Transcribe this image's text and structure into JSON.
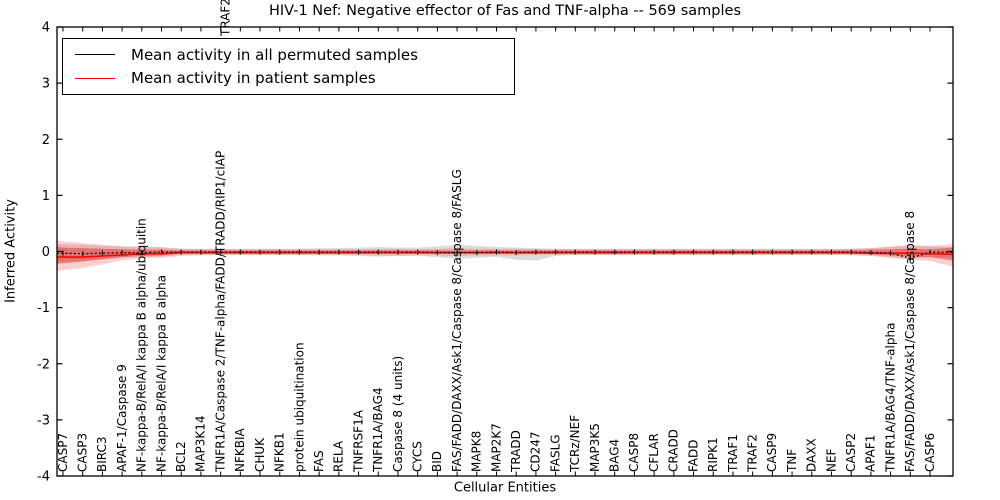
{
  "title": "HIV-1 Nef: Negative effector of Fas and TNF-alpha -- 569 samples",
  "axes": {
    "ylabel": "Inferred Activity",
    "xlabel": "Cellular Entities",
    "yticks": [
      "4",
      "3",
      "2",
      "1",
      "0",
      "-1",
      "-2",
      "-3",
      "-4"
    ]
  },
  "legend": [
    {
      "label": "Mean activity in all permuted samples",
      "color": "#000000"
    },
    {
      "label": "Mean activity in patient samples",
      "color": "#ff0000"
    }
  ],
  "annotation": {
    "text": "TRAF2"
  },
  "chart_data": {
    "type": "line",
    "title": "HIV-1 Nef: Negative effector of Fas and TNF-alpha -- 569 samples",
    "xlabel": "Cellular Entities",
    "ylabel": "Inferred Activity",
    "ylim": [
      -4,
      4
    ],
    "grid": false,
    "legend_position": "upper left",
    "categories": [
      "CASP7",
      "CASP3",
      "BIRC3",
      "APAF-1/Caspase 9",
      "NF-kappa-B/RelA/I kappa B alpha/ubiquitin",
      "NF-kappa-B/RelA/I kappa B alpha",
      "BCL2",
      "MAP3K14",
      "TNFR1A/Caspase 2/TNF-alpha/FADD/TRADD/RIP1/cIAP",
      "NFKBIA",
      "CHUK",
      "NFKB1",
      "protein ubiquitination",
      "FAS",
      "RELA",
      "TNFRSF1A",
      "TNFR1A/BAG4",
      "Caspase 8 (4 units)",
      "CYCS",
      "BID",
      "FAS/FADD/DAXX/Ask1/Caspase 8/Caspase 8/FASLG",
      "MAPK8",
      "MAP2K7",
      "TRADD",
      "CD247",
      "FASLG",
      "TCRz/NEF",
      "MAP3K5",
      "BAG4",
      "CASP8",
      "CFLAR",
      "CRADD",
      "FADD",
      "RIPK1",
      "TRAF1",
      "TRAF2",
      "CASP9",
      "TNF",
      "DAXX",
      "NEF",
      "CASP2",
      "APAF1",
      "TNFR1A/BAG4/TNF-alpha",
      "FAS/FADD/DAXX/Ask1/Caspase 8/Caspase 8",
      "CASP6"
    ],
    "series": [
      {
        "name": "Mean activity in all permuted samples",
        "color": "#000000",
        "values": [
          -0.03,
          -0.04,
          -0.03,
          -0.02,
          -0.02,
          -0.01,
          -0.01,
          -0.01,
          -0.01,
          -0.01,
          -0.01,
          -0.01,
          -0.01,
          -0.01,
          -0.01,
          -0.01,
          -0.01,
          -0.01,
          -0.01,
          -0.02,
          -0.02,
          -0.02,
          -0.01,
          -0.02,
          -0.01,
          -0.01,
          -0.01,
          -0.01,
          -0.01,
          -0.01,
          -0.01,
          -0.01,
          -0.01,
          -0.01,
          -0.01,
          -0.01,
          -0.01,
          -0.01,
          -0.01,
          -0.01,
          -0.01,
          -0.02,
          -0.03,
          -0.12,
          -0.01
        ]
      },
      {
        "name": "Mean activity in patient samples",
        "color": "#ff0000",
        "values": [
          -0.1,
          -0.1,
          -0.08,
          -0.06,
          -0.04,
          -0.04,
          -0.02,
          -0.02,
          -0.02,
          -0.02,
          -0.02,
          -0.02,
          -0.02,
          -0.02,
          -0.02,
          -0.02,
          -0.02,
          -0.02,
          -0.02,
          -0.02,
          -0.02,
          -0.02,
          -0.02,
          -0.02,
          -0.02,
          -0.02,
          -0.02,
          -0.02,
          -0.02,
          -0.02,
          -0.02,
          -0.02,
          -0.02,
          -0.02,
          -0.02,
          -0.02,
          -0.02,
          -0.02,
          -0.02,
          -0.02,
          -0.02,
          -0.03,
          -0.03,
          -0.03,
          -0.04
        ]
      }
    ],
    "bands": [
      {
        "name": "permuted-samples-std",
        "color": "rgba(128,128,128,0.28)",
        "upper": [
          0.13,
          0.12,
          0.1,
          0.09,
          0.08,
          0.08,
          0.05,
          0.05,
          0.05,
          0.05,
          0.05,
          0.05,
          0.05,
          0.06,
          0.06,
          0.07,
          0.08,
          0.07,
          0.07,
          0.09,
          0.12,
          0.1,
          0.08,
          0.07,
          0.06,
          0.05,
          0.05,
          0.05,
          0.05,
          0.05,
          0.05,
          0.05,
          0.05,
          0.05,
          0.05,
          0.05,
          0.05,
          0.05,
          0.05,
          0.05,
          0.05,
          0.06,
          0.08,
          0.11,
          0.09
        ],
        "lower": [
          -0.18,
          -0.16,
          -0.13,
          -0.11,
          -0.1,
          -0.09,
          -0.06,
          -0.06,
          -0.06,
          -0.06,
          -0.06,
          -0.06,
          -0.06,
          -0.07,
          -0.07,
          -0.08,
          -0.09,
          -0.08,
          -0.08,
          -0.1,
          -0.13,
          -0.11,
          -0.09,
          -0.15,
          -0.16,
          -0.08,
          -0.06,
          -0.06,
          -0.06,
          -0.06,
          -0.06,
          -0.06,
          -0.06,
          -0.06,
          -0.06,
          -0.06,
          -0.06,
          -0.06,
          -0.06,
          -0.06,
          -0.06,
          -0.07,
          -0.1,
          -0.13,
          -0.11
        ],
        "edge_left": [
          0.13,
          -0.18
        ],
        "edge_right": [
          0.08,
          -0.1
        ]
      },
      {
        "name": "patient-samples-std-outer",
        "color": "rgba(255,60,60,0.25)",
        "upper": [
          0.18,
          0.15,
          0.12,
          0.09,
          0.08,
          0.07,
          0.05,
          0.04,
          0.04,
          0.04,
          0.04,
          0.04,
          0.04,
          0.04,
          0.04,
          0.04,
          0.05,
          0.05,
          0.04,
          0.05,
          0.06,
          0.05,
          0.05,
          0.05,
          0.04,
          0.04,
          0.04,
          0.04,
          0.04,
          0.04,
          0.04,
          0.04,
          0.04,
          0.04,
          0.04,
          0.04,
          0.04,
          0.04,
          0.04,
          0.04,
          0.05,
          0.06,
          0.09,
          0.11,
          0.1
        ],
        "lower": [
          -0.33,
          -0.29,
          -0.23,
          -0.16,
          -0.12,
          -0.11,
          -0.08,
          -0.07,
          -0.06,
          -0.06,
          -0.06,
          -0.06,
          -0.06,
          -0.06,
          -0.06,
          -0.06,
          -0.07,
          -0.07,
          -0.06,
          -0.07,
          -0.08,
          -0.07,
          -0.07,
          -0.07,
          -0.06,
          -0.06,
          -0.06,
          -0.06,
          -0.06,
          -0.06,
          -0.06,
          -0.06,
          -0.06,
          -0.06,
          -0.06,
          -0.06,
          -0.06,
          -0.06,
          -0.06,
          -0.06,
          -0.07,
          -0.08,
          -0.12,
          -0.15,
          -0.17
        ],
        "edge_left": [
          0.2,
          -0.35
        ],
        "edge_right": [
          0.13,
          -0.27
        ]
      },
      {
        "name": "patient-samples-std-inner",
        "color": "rgba(230,30,30,0.45)",
        "upper": [
          0.07,
          0.06,
          0.05,
          0.04,
          0.03,
          0.03,
          0.02,
          0.02,
          0.02,
          0.02,
          0.02,
          0.02,
          0.02,
          0.02,
          0.02,
          0.02,
          0.02,
          0.02,
          0.02,
          0.02,
          0.02,
          0.02,
          0.02,
          0.02,
          0.02,
          0.02,
          0.02,
          0.02,
          0.02,
          0.02,
          0.02,
          0.02,
          0.02,
          0.02,
          0.02,
          0.02,
          0.02,
          0.02,
          0.02,
          0.02,
          0.02,
          0.03,
          0.04,
          0.05,
          0.04
        ],
        "lower": [
          -0.21,
          -0.18,
          -0.14,
          -0.1,
          -0.08,
          -0.07,
          -0.04,
          -0.04,
          -0.04,
          -0.04,
          -0.04,
          -0.04,
          -0.04,
          -0.04,
          -0.04,
          -0.04,
          -0.04,
          -0.04,
          -0.04,
          -0.04,
          -0.04,
          -0.04,
          -0.04,
          -0.04,
          -0.04,
          -0.04,
          -0.04,
          -0.04,
          -0.04,
          -0.04,
          -0.04,
          -0.04,
          -0.04,
          -0.04,
          -0.04,
          -0.04,
          -0.04,
          -0.04,
          -0.04,
          -0.04,
          -0.04,
          -0.05,
          -0.07,
          -0.09,
          -0.1
        ],
        "edge_left": [
          0.08,
          -0.22
        ],
        "edge_right": [
          0.07,
          -0.16
        ]
      }
    ],
    "series_edges": {
      "permuted": {
        "left": -0.03,
        "right": -0.01
      },
      "patient": {
        "left": -0.1,
        "right": -0.05
      }
    }
  }
}
